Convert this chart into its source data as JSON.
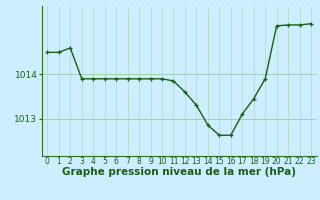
{
  "hours": [
    0,
    1,
    2,
    3,
    4,
    5,
    6,
    7,
    8,
    9,
    10,
    11,
    12,
    13,
    14,
    15,
    16,
    17,
    18,
    19,
    20,
    21,
    22,
    23
  ],
  "pressure": [
    1014.5,
    1014.5,
    1014.6,
    1013.9,
    1013.9,
    1013.9,
    1013.9,
    1013.9,
    1013.9,
    1013.9,
    1013.9,
    1013.85,
    1013.6,
    1013.3,
    1012.85,
    1012.62,
    1012.62,
    1013.1,
    1013.45,
    1013.9,
    1015.1,
    1015.12,
    1015.12,
    1015.15
  ],
  "line_color": "#1a5c1a",
  "marker_color": "#1a5c1a",
  "bg_color": "#cceeff",
  "grid_color_v": "#b0d8c8",
  "grid_color_h": "#99ccaa",
  "xlabel": "Graphe pression niveau de la mer (hPa)",
  "xlabel_fontsize": 7.5,
  "ytick_labels": [
    "1013",
    "1014"
  ],
  "ylim": [
    1012.15,
    1015.55
  ],
  "yticks": [
    1013.0,
    1014.0
  ],
  "xtick_fontsize": 5.5,
  "ytick_fontsize": 6.5,
  "marker_size": 3.5,
  "line_width": 1.0
}
